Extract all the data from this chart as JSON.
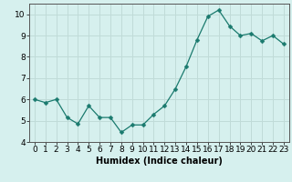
{
  "x": [
    0,
    1,
    2,
    3,
    4,
    5,
    6,
    7,
    8,
    9,
    10,
    11,
    12,
    13,
    14,
    15,
    16,
    17,
    18,
    19,
    20,
    21,
    22,
    23
  ],
  "y": [
    6.0,
    5.85,
    6.0,
    5.15,
    4.85,
    5.7,
    5.15,
    5.15,
    4.45,
    4.8,
    4.8,
    5.3,
    5.7,
    6.5,
    7.55,
    8.8,
    9.9,
    10.2,
    9.45,
    9.0,
    9.1,
    8.75,
    9.0,
    8.6
  ],
  "line_color": "#1a7a6e",
  "marker": "D",
  "marker_size": 2.5,
  "bg_color": "#d6f0ee",
  "grid_color": "#c0dbd8",
  "axis_color": "#555555",
  "xlabel": "Humidex (Indice chaleur)",
  "ylim": [
    4,
    10.5
  ],
  "xlim": [
    -0.5,
    23.5
  ],
  "yticks": [
    4,
    5,
    6,
    7,
    8,
    9,
    10
  ],
  "xticks": [
    0,
    1,
    2,
    3,
    4,
    5,
    6,
    7,
    8,
    9,
    10,
    11,
    12,
    13,
    14,
    15,
    16,
    17,
    18,
    19,
    20,
    21,
    22,
    23
  ],
  "xlabel_fontsize": 7,
  "tick_fontsize": 6.5
}
